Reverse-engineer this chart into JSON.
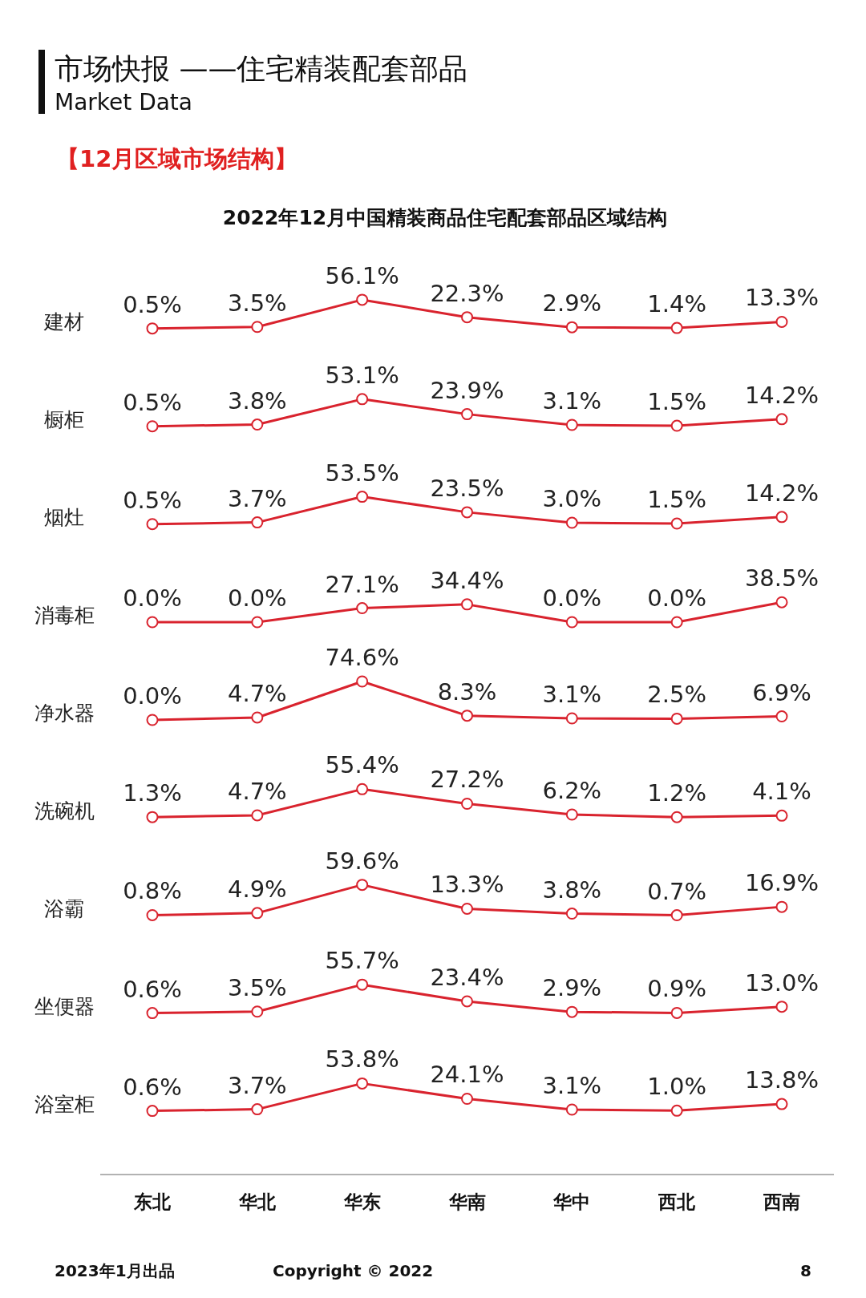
{
  "chart_data": [
    {
      "type": "line",
      "title": "2022年12月中国精装商品住宅配套部品区域结构",
      "annotations": [
        "市场快报 ——住宅精装配套部品",
        "Market Data",
        "【12月区域市场结构】"
      ],
      "ylabel": "建材",
      "categories": [
        null,
        null,
        null,
        null,
        null,
        null,
        null
      ],
      "series": [
        {
          "color": "#d9232e",
          "values": [
            0.5,
            3.5,
            56.1,
            22.3,
            2.9,
            1.4,
            13.3
          ],
          "value_labels": [
            "0.5%",
            "3.5%",
            "56.1%",
            "22.3%",
            "2.9%",
            "1.4%",
            "13.3%"
          ]
        }
      ],
      "marker": "circle",
      "tick_labels": false
    },
    {
      "type": "line",
      "ylabel": "橱柜",
      "categories": [
        null,
        null,
        null,
        null,
        null,
        null,
        null
      ],
      "series": [
        {
          "color": "#d9232e",
          "values": [
            0.5,
            3.8,
            53.1,
            23.9,
            3.1,
            1.5,
            14.2
          ],
          "value_labels": [
            "0.5%",
            "3.8%",
            "53.1%",
            "23.9%",
            "3.1%",
            "1.5%",
            "14.2%"
          ]
        }
      ],
      "marker": "circle",
      "tick_labels": false
    },
    {
      "type": "line",
      "ylabel": "烟灶",
      "categories": [
        null,
        null,
        null,
        null,
        null,
        null,
        null
      ],
      "series": [
        {
          "color": "#d9232e",
          "values": [
            0.5,
            3.7,
            53.5,
            23.5,
            3.0,
            1.5,
            14.2
          ],
          "value_labels": [
            "0.5%",
            "3.7%",
            "53.5%",
            "23.5%",
            "3.0%",
            "1.5%",
            "14.2%"
          ]
        }
      ],
      "marker": "circle",
      "tick_labels": false
    },
    {
      "type": "line",
      "ylabel": "消毒柜",
      "categories": [
        null,
        null,
        null,
        null,
        null,
        null,
        null
      ],
      "series": [
        {
          "color": "#d9232e",
          "values": [
            0.0,
            0.0,
            27.1,
            34.4,
            0.0,
            0.0,
            38.5
          ],
          "value_labels": [
            "0.0%",
            "0.0%",
            "27.1%",
            "34.4%",
            "0.0%",
            "0.0%",
            "38.5%"
          ]
        }
      ],
      "marker": "circle",
      "tick_labels": false
    },
    {
      "type": "line",
      "ylabel": "净水器",
      "categories": [
        null,
        null,
        null,
        null,
        null,
        null,
        null
      ],
      "series": [
        {
          "color": "#d9232e",
          "values": [
            0.0,
            4.7,
            74.6,
            8.3,
            3.1,
            2.5,
            6.9
          ],
          "value_labels": [
            "0.0%",
            "4.7%",
            "74.6%",
            "8.3%",
            "3.1%",
            "2.5%",
            "6.9%"
          ]
        }
      ],
      "marker": "circle",
      "tick_labels": false
    },
    {
      "type": "line",
      "ylabel": "洗碗机",
      "categories": [
        null,
        null,
        null,
        null,
        null,
        null,
        null
      ],
      "series": [
        {
          "color": "#d9232e",
          "values": [
            1.3,
            4.7,
            55.4,
            27.2,
            6.2,
            1.2,
            4.1
          ],
          "value_labels": [
            "1.3%",
            "4.7%",
            "55.4%",
            "27.2%",
            "6.2%",
            "1.2%",
            "4.1%"
          ]
        }
      ],
      "marker": "circle",
      "tick_labels": false
    },
    {
      "type": "line",
      "ylabel": "浴霸",
      "categories": [
        null,
        null,
        null,
        null,
        null,
        null,
        null
      ],
      "series": [
        {
          "color": "#d9232e",
          "values": [
            0.8,
            4.9,
            59.6,
            13.3,
            3.8,
            0.7,
            16.9
          ],
          "value_labels": [
            "0.8%",
            "4.9%",
            "59.6%",
            "13.3%",
            "3.8%",
            "0.7%",
            "16.9%"
          ]
        }
      ],
      "marker": "circle",
      "tick_labels": false
    },
    {
      "type": "line",
      "ylabel": "坐便器",
      "categories": [
        null,
        null,
        null,
        null,
        null,
        null,
        null
      ],
      "series": [
        {
          "color": "#d9232e",
          "values": [
            0.6,
            3.5,
            55.7,
            23.4,
            2.9,
            0.9,
            13.0
          ],
          "value_labels": [
            "0.6%",
            "3.5%",
            "55.7%",
            "23.4%",
            "2.9%",
            "0.9%",
            "13.0%"
          ]
        }
      ],
      "marker": "circle",
      "tick_labels": false
    },
    {
      "type": "line",
      "ylabel": "浴室柜",
      "categories": [
        "东北",
        "华北",
        "华东",
        "华南",
        "华中",
        "西北",
        "西南"
      ],
      "series": [
        {
          "color": "#d9232e",
          "values": [
            0.6,
            3.7,
            53.8,
            24.1,
            3.1,
            1.0,
            13.8
          ],
          "value_labels": [
            "0.6%",
            "3.7%",
            "53.8%",
            "24.1%",
            "3.1%",
            "1.0%",
            "13.8%"
          ]
        }
      ],
      "marker": "circle",
      "tick_labels": "x",
      "annotations": [
        "2023年1月出品",
        "Copyright © 2022",
        "8"
      ]
    }
  ]
}
